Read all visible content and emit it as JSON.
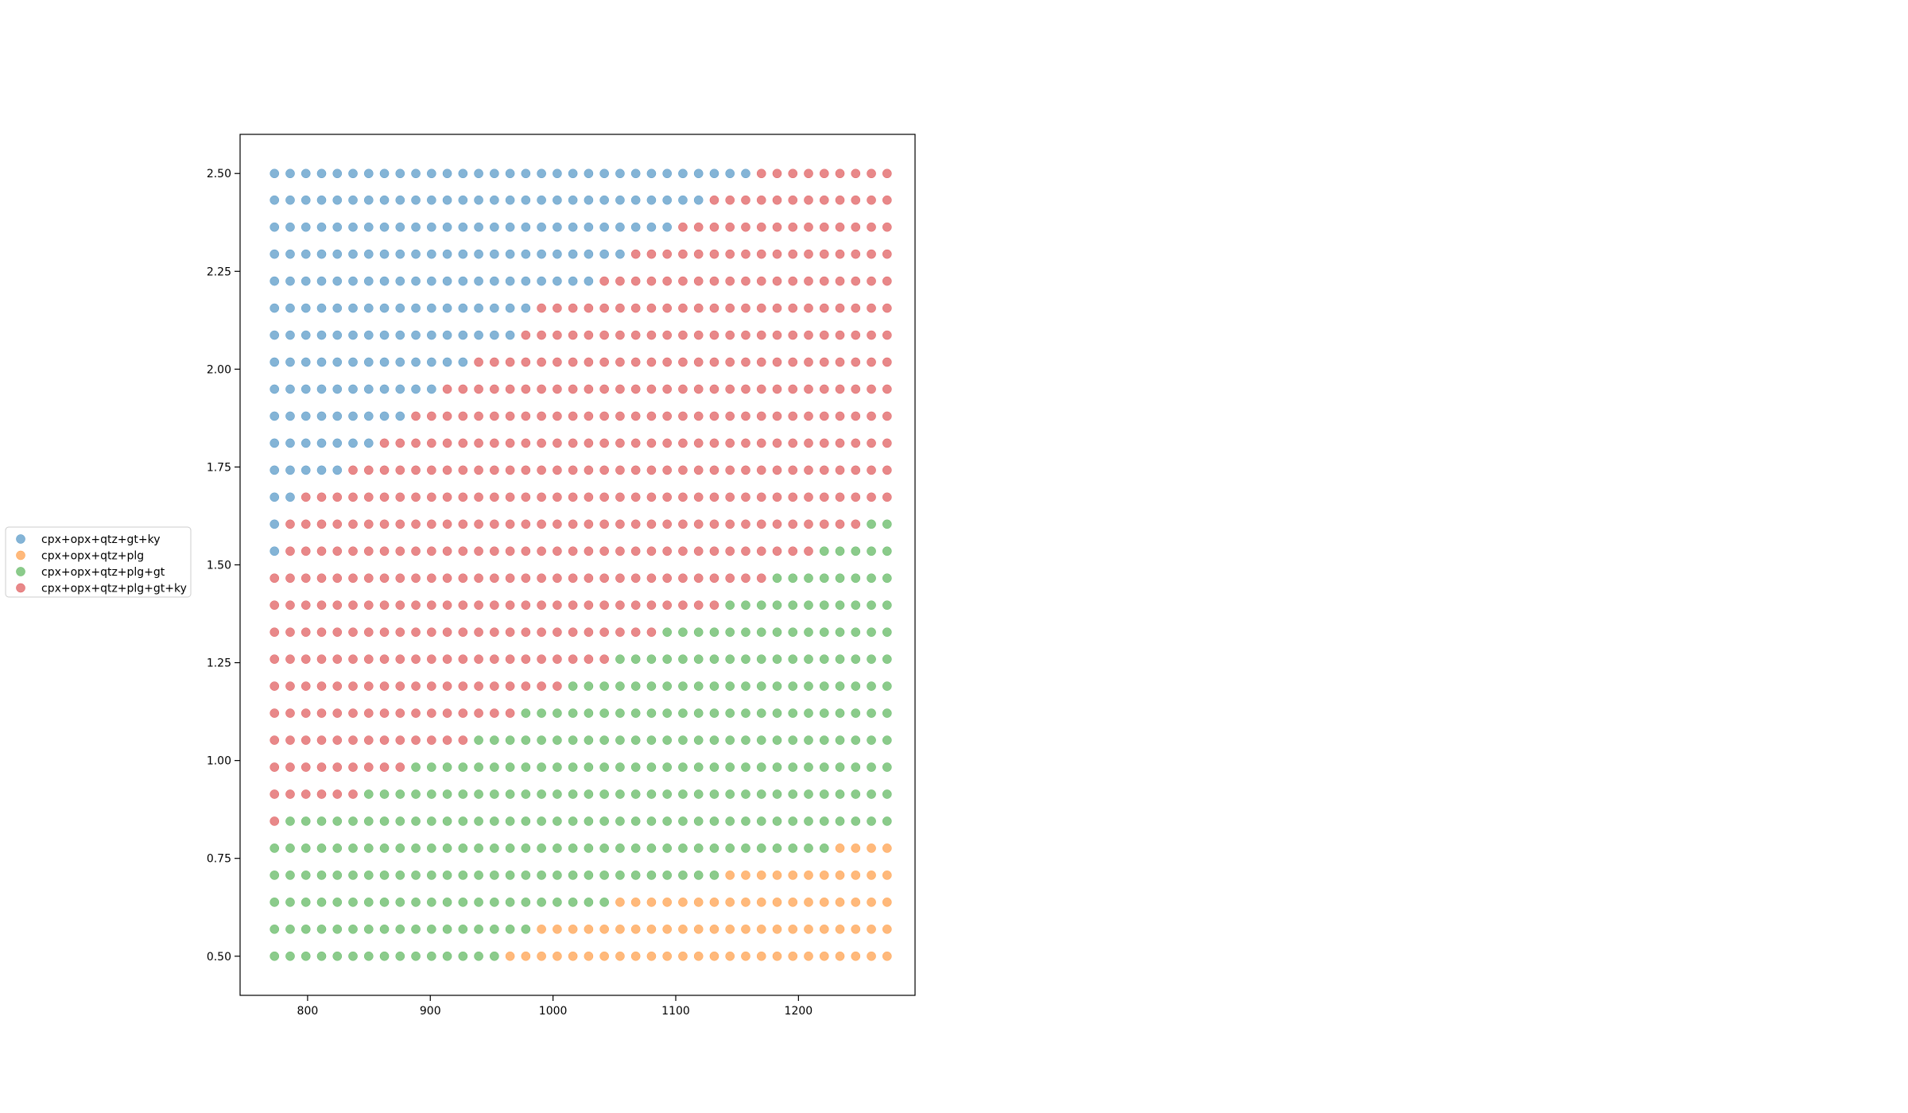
{
  "chart_data": {
    "type": "scatter",
    "title": "",
    "xlabel": "",
    "ylabel": "",
    "xlim": [
      745,
      1295
    ],
    "ylim": [
      0.4,
      2.6
    ],
    "xticks": [
      800,
      900,
      1000,
      1100,
      1200
    ],
    "yticks": [
      0.5,
      0.75,
      1.0,
      1.25,
      1.5,
      1.75,
      2.0,
      2.25,
      2.5
    ],
    "xtick_labels": [
      "800",
      "900",
      "1000",
      "1100",
      "1200"
    ],
    "ytick_labels": [
      "0.50",
      "0.75",
      "1.00",
      "1.25",
      "1.50",
      "1.75",
      "2.00",
      "2.25",
      "2.50"
    ],
    "grid": false,
    "legend_placement": "outside-left",
    "x_grid": {
      "start": 773,
      "step": 12.8,
      "count": 40
    },
    "y_grid": {
      "start": 0.5,
      "step": 0.069,
      "count": 30
    },
    "series": [
      {
        "name": "cpx+opx+qtz+gt+ky",
        "color": "#1f77b4"
      },
      {
        "name": "cpx+opx+qtz+plg",
        "color": "#ff7f0e"
      },
      {
        "name": "cpx+opx+qtz+plg+gt",
        "color": "#2ca02c"
      },
      {
        "name": "cpx+opx+qtz+plg+gt+ky",
        "color": "#d62728"
      }
    ],
    "rows": [
      {
        "y": 0.5,
        "boundaries": [
          {
            "series": 2,
            "to_x": 955
          },
          {
            "series": 1,
            "to_x": 1273
          }
        ]
      },
      {
        "y": 0.569,
        "boundaries": [
          {
            "series": 2,
            "to_x": 990
          },
          {
            "series": 1,
            "to_x": 1273
          }
        ]
      },
      {
        "y": 0.638,
        "boundaries": [
          {
            "series": 2,
            "to_x": 1045
          },
          {
            "series": 1,
            "to_x": 1273
          }
        ]
      },
      {
        "y": 0.707,
        "boundaries": [
          {
            "series": 2,
            "to_x": 1135
          },
          {
            "series": 1,
            "to_x": 1273
          }
        ]
      },
      {
        "y": 0.776,
        "boundaries": [
          {
            "series": 2,
            "to_x": 1222
          },
          {
            "series": 1,
            "to_x": 1273
          }
        ]
      },
      {
        "y": 0.845,
        "boundaries": [
          {
            "series": 3,
            "to_x": 785
          },
          {
            "series": 2,
            "to_x": 1273
          }
        ]
      },
      {
        "y": 0.914,
        "boundaries": [
          {
            "series": 3,
            "to_x": 837
          },
          {
            "series": 2,
            "to_x": 1273
          }
        ]
      },
      {
        "y": 0.983,
        "boundaries": [
          {
            "series": 3,
            "to_x": 875
          },
          {
            "series": 2,
            "to_x": 1273
          }
        ]
      },
      {
        "y": 1.052,
        "boundaries": [
          {
            "series": 3,
            "to_x": 927
          },
          {
            "series": 2,
            "to_x": 1273
          }
        ]
      },
      {
        "y": 1.121,
        "boundaries": [
          {
            "series": 3,
            "to_x": 965
          },
          {
            "series": 2,
            "to_x": 1273
          }
        ]
      },
      {
        "y": 1.19,
        "boundaries": [
          {
            "series": 3,
            "to_x": 1003
          },
          {
            "series": 2,
            "to_x": 1273
          }
        ]
      },
      {
        "y": 1.259,
        "boundaries": [
          {
            "series": 3,
            "to_x": 1042
          },
          {
            "series": 2,
            "to_x": 1273
          }
        ]
      },
      {
        "y": 1.328,
        "boundaries": [
          {
            "series": 3,
            "to_x": 1080
          },
          {
            "series": 2,
            "to_x": 1273
          }
        ]
      },
      {
        "y": 1.397,
        "boundaries": [
          {
            "series": 3,
            "to_x": 1131
          },
          {
            "series": 2,
            "to_x": 1273
          }
        ]
      },
      {
        "y": 1.466,
        "boundaries": [
          {
            "series": 3,
            "to_x": 1170
          },
          {
            "series": 2,
            "to_x": 1273
          }
        ]
      },
      {
        "y": 1.535,
        "boundaries": [
          {
            "series": 0,
            "to_x": 785
          },
          {
            "series": 3,
            "to_x": 1209
          },
          {
            "series": 2,
            "to_x": 1273
          }
        ]
      },
      {
        "y": 1.604,
        "boundaries": [
          {
            "series": 0,
            "to_x": 785
          },
          {
            "series": 3,
            "to_x": 1247
          },
          {
            "series": 2,
            "to_x": 1273
          }
        ]
      },
      {
        "y": 1.673,
        "boundaries": [
          {
            "series": 0,
            "to_x": 798
          },
          {
            "series": 3,
            "to_x": 1273
          }
        ]
      },
      {
        "y": 1.742,
        "boundaries": [
          {
            "series": 0,
            "to_x": 824
          },
          {
            "series": 3,
            "to_x": 1273
          }
        ]
      },
      {
        "y": 1.811,
        "boundaries": [
          {
            "series": 0,
            "to_x": 850
          },
          {
            "series": 3,
            "to_x": 1273
          }
        ]
      },
      {
        "y": 1.88,
        "boundaries": [
          {
            "series": 0,
            "to_x": 875
          },
          {
            "series": 3,
            "to_x": 1273
          }
        ]
      },
      {
        "y": 1.949,
        "boundaries": [
          {
            "series": 0,
            "to_x": 901
          },
          {
            "series": 3,
            "to_x": 1273
          }
        ]
      },
      {
        "y": 2.018,
        "boundaries": [
          {
            "series": 0,
            "to_x": 927
          },
          {
            "series": 3,
            "to_x": 1273
          }
        ]
      },
      {
        "y": 2.087,
        "boundaries": [
          {
            "series": 0,
            "to_x": 965
          },
          {
            "series": 3,
            "to_x": 1273
          }
        ]
      },
      {
        "y": 2.156,
        "boundaries": [
          {
            "series": 0,
            "to_x": 990
          },
          {
            "series": 3,
            "to_x": 1273
          }
        ]
      },
      {
        "y": 2.225,
        "boundaries": [
          {
            "series": 0,
            "to_x": 1029
          },
          {
            "series": 3,
            "to_x": 1273
          }
        ]
      },
      {
        "y": 2.294,
        "boundaries": [
          {
            "series": 0,
            "to_x": 1055
          },
          {
            "series": 3,
            "to_x": 1273
          }
        ]
      },
      {
        "y": 2.363,
        "boundaries": [
          {
            "series": 0,
            "to_x": 1093
          },
          {
            "series": 3,
            "to_x": 1273
          }
        ]
      },
      {
        "y": 2.432,
        "boundaries": [
          {
            "series": 0,
            "to_x": 1119
          },
          {
            "series": 3,
            "to_x": 1273
          }
        ]
      },
      {
        "y": 2.5,
        "boundaries": [
          {
            "series": 0,
            "to_x": 1157
          },
          {
            "series": 3,
            "to_x": 1273
          }
        ]
      }
    ]
  }
}
